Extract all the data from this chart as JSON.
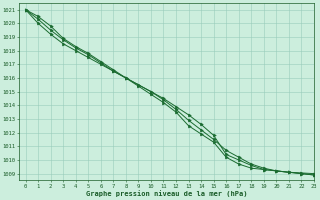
{
  "title": "Graphe pression niveau de la mer (hPa)",
  "bg_color": "#cceedd",
  "line_color": "#1a6b30",
  "grid_color": "#99ccbb",
  "text_color": "#1a5c28",
  "xlim": [
    -0.5,
    23
  ],
  "ylim": [
    1008.5,
    1021.5
  ],
  "yticks": [
    1009,
    1010,
    1011,
    1012,
    1013,
    1014,
    1015,
    1016,
    1017,
    1018,
    1019,
    1020,
    1021
  ],
  "xticks": [
    0,
    1,
    2,
    3,
    4,
    5,
    6,
    7,
    8,
    9,
    10,
    11,
    12,
    13,
    14,
    15,
    16,
    17,
    18,
    19,
    20,
    21,
    22,
    23
  ],
  "line1_x": [
    0,
    1,
    2,
    3,
    4,
    5,
    6,
    7,
    8,
    9,
    10,
    11,
    12,
    13,
    14,
    15,
    16,
    17,
    18,
    19,
    20,
    21,
    22,
    23
  ],
  "line1_y": [
    1021.0,
    1020.3,
    1019.5,
    1018.8,
    1018.2,
    1017.7,
    1017.1,
    1016.5,
    1016.0,
    1015.5,
    1015.0,
    1014.5,
    1013.9,
    1013.3,
    1012.6,
    1011.8,
    1010.4,
    1010.0,
    1009.6,
    1009.3,
    1009.2,
    1009.1,
    1009.05,
    1009.0
  ],
  "line2_x": [
    0,
    1,
    2,
    3,
    4,
    5,
    6,
    7,
    8,
    9,
    10,
    11,
    12,
    13,
    14,
    15,
    16,
    17,
    18,
    19,
    20,
    21,
    22,
    23
  ],
  "line2_y": [
    1021.0,
    1020.5,
    1019.8,
    1018.9,
    1018.3,
    1017.8,
    1017.2,
    1016.6,
    1016.0,
    1015.4,
    1014.8,
    1014.2,
    1013.5,
    1012.5,
    1011.9,
    1011.3,
    1010.2,
    1009.7,
    1009.4,
    1009.3,
    1009.2,
    1009.1,
    1009.0,
    1008.9
  ],
  "line3_x": [
    0,
    1,
    2,
    3,
    4,
    5,
    6,
    7,
    8,
    9,
    10,
    11,
    12,
    13,
    14,
    15,
    16,
    17,
    18,
    19,
    20,
    21,
    22,
    23
  ],
  "line3_y": [
    1021.0,
    1020.0,
    1019.2,
    1018.5,
    1018.0,
    1017.5,
    1017.0,
    1016.5,
    1016.0,
    1015.5,
    1015.0,
    1014.4,
    1013.7,
    1012.9,
    1012.2,
    1011.5,
    1010.7,
    1010.2,
    1009.7,
    1009.4,
    1009.2,
    1009.1,
    1009.0,
    1008.9
  ]
}
